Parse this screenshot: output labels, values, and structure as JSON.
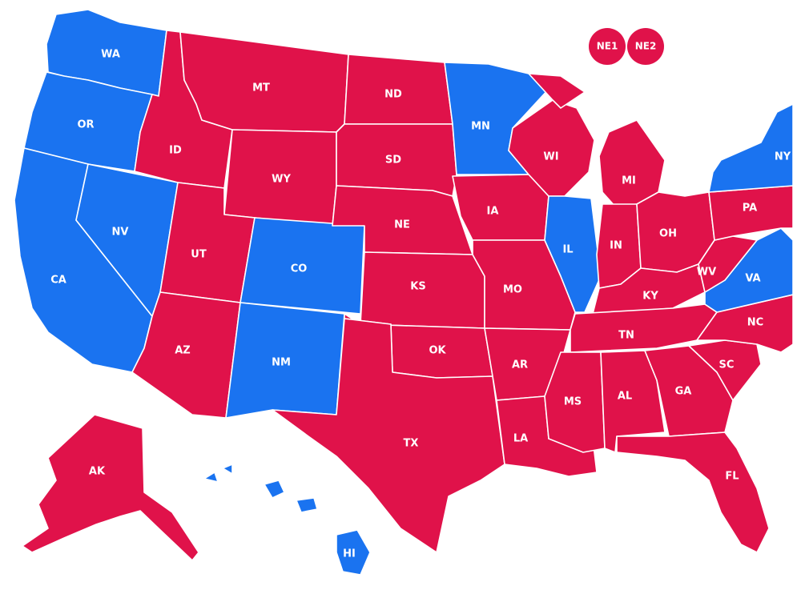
{
  "colors": {
    "blue": "#1a73f0",
    "red": "#e0124a",
    "border": "#ffffff"
  },
  "states": {
    "WA": {
      "label": "WA",
      "party": "blue"
    },
    "OR": {
      "label": "OR",
      "party": "blue"
    },
    "CA": {
      "label": "CA",
      "party": "blue"
    },
    "NV": {
      "label": "NV",
      "party": "blue"
    },
    "ID": {
      "label": "ID",
      "party": "red"
    },
    "MT": {
      "label": "MT",
      "party": "red"
    },
    "WY": {
      "label": "WY",
      "party": "red"
    },
    "UT": {
      "label": "UT",
      "party": "red"
    },
    "AZ": {
      "label": "AZ",
      "party": "red"
    },
    "CO": {
      "label": "CO",
      "party": "blue"
    },
    "NM": {
      "label": "NM",
      "party": "blue"
    },
    "ND": {
      "label": "ND",
      "party": "red"
    },
    "SD": {
      "label": "SD",
      "party": "red"
    },
    "NE": {
      "label": "NE",
      "party": "red"
    },
    "KS": {
      "label": "KS",
      "party": "red"
    },
    "OK": {
      "label": "OK",
      "party": "red"
    },
    "TX": {
      "label": "TX",
      "party": "red"
    },
    "MN": {
      "label": "MN",
      "party": "blue"
    },
    "IA": {
      "label": "IA",
      "party": "red"
    },
    "MO": {
      "label": "MO",
      "party": "red"
    },
    "AR": {
      "label": "AR",
      "party": "red"
    },
    "LA": {
      "label": "LA",
      "party": "red"
    },
    "WI": {
      "label": "WI",
      "party": "red"
    },
    "IL": {
      "label": "IL",
      "party": "blue"
    },
    "MI": {
      "label": "MI",
      "party": "red"
    },
    "IN": {
      "label": "IN",
      "party": "red"
    },
    "OH": {
      "label": "OH",
      "party": "red"
    },
    "KY": {
      "label": "KY",
      "party": "red"
    },
    "TN": {
      "label": "TN",
      "party": "red"
    },
    "MS": {
      "label": "MS",
      "party": "red"
    },
    "AL": {
      "label": "AL",
      "party": "red"
    },
    "GA": {
      "label": "GA",
      "party": "red"
    },
    "FL": {
      "label": "FL",
      "party": "red"
    },
    "SC": {
      "label": "SC",
      "party": "red"
    },
    "NC": {
      "label": "NC",
      "party": "red"
    },
    "VA": {
      "label": "VA",
      "party": "blue"
    },
    "WV": {
      "label": "WV",
      "party": "red"
    },
    "PA": {
      "label": "PA",
      "party": "red"
    },
    "NY": {
      "label": "NY",
      "party": "blue"
    },
    "AK": {
      "label": "AK",
      "party": "red"
    },
    "HI": {
      "label": "HI",
      "party": "blue"
    },
    "NE1": {
      "label": "NE1",
      "party": "red"
    },
    "NE2": {
      "label": "NE2",
      "party": "red"
    }
  }
}
